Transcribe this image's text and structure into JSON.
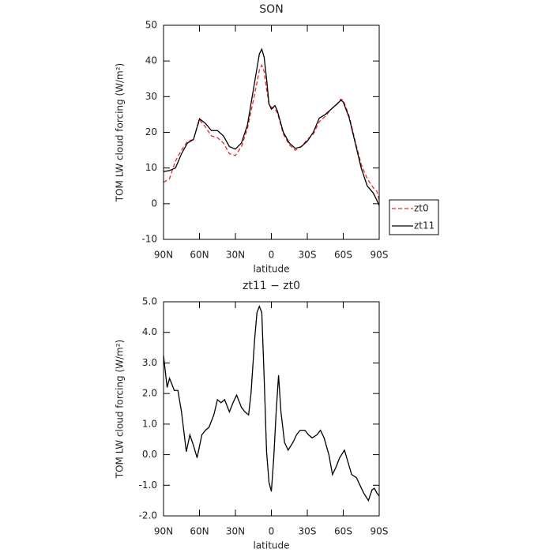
{
  "chart_data": [
    {
      "type": "line",
      "title": "SON",
      "x_label": "latitude",
      "y_label": "TOM LW cloud forcing (W/m²)",
      "xlim": [
        90,
        -90
      ],
      "xticks": [
        {
          "value": 90,
          "label": "90N"
        },
        {
          "value": 60,
          "label": "60N"
        },
        {
          "value": 30,
          "label": "30N"
        },
        0,
        {
          "value": -30,
          "label": "30S"
        },
        {
          "value": -60,
          "label": "60S"
        },
        {
          "value": -90,
          "label": "90S"
        }
      ],
      "ylim": [
        -10,
        50
      ],
      "yticks": [
        -10,
        0,
        10,
        20,
        30,
        40,
        50
      ],
      "legend": "right",
      "series": [
        {
          "name": "zt0",
          "color": "#e8262a",
          "dash": "dashed",
          "x": [
            90,
            85,
            80,
            75,
            70,
            65,
            60,
            55,
            50,
            45,
            40,
            35,
            30,
            25,
            20,
            15,
            12,
            10,
            8,
            6,
            4,
            2,
            0,
            -3,
            -5,
            -10,
            -15,
            -20,
            -25,
            -30,
            -35,
            -40,
            -45,
            -50,
            -55,
            -58,
            -60,
            -65,
            -70,
            -75,
            -80,
            -85,
            -88,
            -90
          ],
          "values": [
            6,
            7,
            12,
            15,
            17.5,
            18,
            23.5,
            21.5,
            19,
            18.5,
            17,
            14,
            13.5,
            16,
            21,
            29,
            34,
            37.5,
            38.8,
            37,
            32,
            28,
            27,
            26.5,
            25.5,
            19.5,
            16.5,
            15,
            16,
            18,
            19.5,
            23,
            24.5,
            26.5,
            28,
            29.3,
            29,
            24.5,
            17.5,
            11,
            7,
            4.5,
            3.5,
            1
          ]
        },
        {
          "name": "zt11",
          "color": "#000000",
          "dash": "solid",
          "x": [
            90,
            85,
            80,
            75,
            70,
            65,
            60,
            55,
            50,
            45,
            40,
            35,
            30,
            25,
            20,
            15,
            12,
            10,
            8,
            6,
            4,
            2,
            0,
            -3,
            -5,
            -10,
            -15,
            -20,
            -25,
            -30,
            -35,
            -40,
            -45,
            -50,
            -55,
            -58,
            -60,
            -65,
            -70,
            -75,
            -80,
            -85,
            -88,
            -90
          ],
          "values": [
            9,
            9.3,
            10,
            14,
            17,
            18,
            23.8,
            22.5,
            20.5,
            20.5,
            19,
            16,
            15.3,
            17,
            22,
            32,
            38,
            42,
            43.3,
            41,
            35,
            28,
            26.5,
            27.5,
            26,
            20,
            17,
            15.5,
            16,
            17.5,
            20,
            24,
            25,
            26.5,
            28,
            29,
            28.5,
            24,
            17,
            10,
            5,
            3,
            1,
            -0.5
          ]
        }
      ]
    },
    {
      "type": "line",
      "title": "zt11 − zt0",
      "x_label": "latitude",
      "y_label": "TOM LW cloud forcing (W/m²)",
      "xlim": [
        90,
        -90
      ],
      "xticks": [
        {
          "value": 90,
          "label": "90N"
        },
        {
          "value": 60,
          "label": "60N"
        },
        {
          "value": 30,
          "label": "30N"
        },
        0,
        {
          "value": -30,
          "label": "30S"
        },
        {
          "value": -60,
          "label": "60S"
        },
        {
          "value": -90,
          "label": "90S"
        }
      ],
      "ylim": [
        -2,
        5
      ],
      "yticks": [
        {
          "value": -2,
          "label": "-2.0"
        },
        {
          "value": -1,
          "label": "-1.0"
        },
        {
          "value": 0,
          "label": "0.0"
        },
        {
          "value": 1,
          "label": "1.0"
        },
        {
          "value": 2,
          "label": "2.0"
        },
        {
          "value": 3,
          "label": "3.0"
        },
        {
          "value": 4,
          "label": "4.0"
        },
        {
          "value": 5,
          "label": "5.0"
        }
      ],
      "series": [
        {
          "color": "#000000",
          "dash": "solid",
          "x": [
            90,
            87,
            85,
            81,
            78,
            75,
            71,
            68,
            65,
            62,
            58,
            55,
            52,
            48,
            45,
            42,
            39,
            35,
            32,
            29,
            25,
            22,
            19,
            17,
            14,
            12,
            10,
            8,
            6,
            4,
            2,
            0,
            -2,
            -4,
            -6,
            -8,
            -11,
            -14,
            -18,
            -21,
            -24,
            -28,
            -31,
            -34,
            -38,
            -41,
            -44,
            -48,
            -51,
            -54,
            -57,
            -61,
            -64,
            -67,
            -71,
            -74,
            -77,
            -81,
            -84,
            -86,
            -88,
            -90
          ],
          "values": [
            3.24,
            2.2,
            2.5,
            2.1,
            2.1,
            1.4,
            0.1,
            0.65,
            0.3,
            -0.1,
            0.65,
            0.8,
            0.9,
            1.3,
            1.8,
            1.7,
            1.8,
            1.4,
            1.7,
            1.95,
            1.55,
            1.4,
            1.3,
            2.0,
            3.75,
            4.65,
            4.85,
            4.65,
            2.5,
            0.1,
            -0.9,
            -1.2,
            -0.1,
            1.4,
            2.6,
            1.4,
            0.4,
            0.15,
            0.4,
            0.65,
            0.8,
            0.8,
            0.65,
            0.55,
            0.65,
            0.8,
            0.55,
            0.0,
            -0.65,
            -0.4,
            -0.1,
            0.15,
            -0.25,
            -0.65,
            -0.75,
            -1.0,
            -1.25,
            -1.5,
            -1.15,
            -1.1,
            -1.25,
            -1.35
          ]
        }
      ]
    }
  ]
}
